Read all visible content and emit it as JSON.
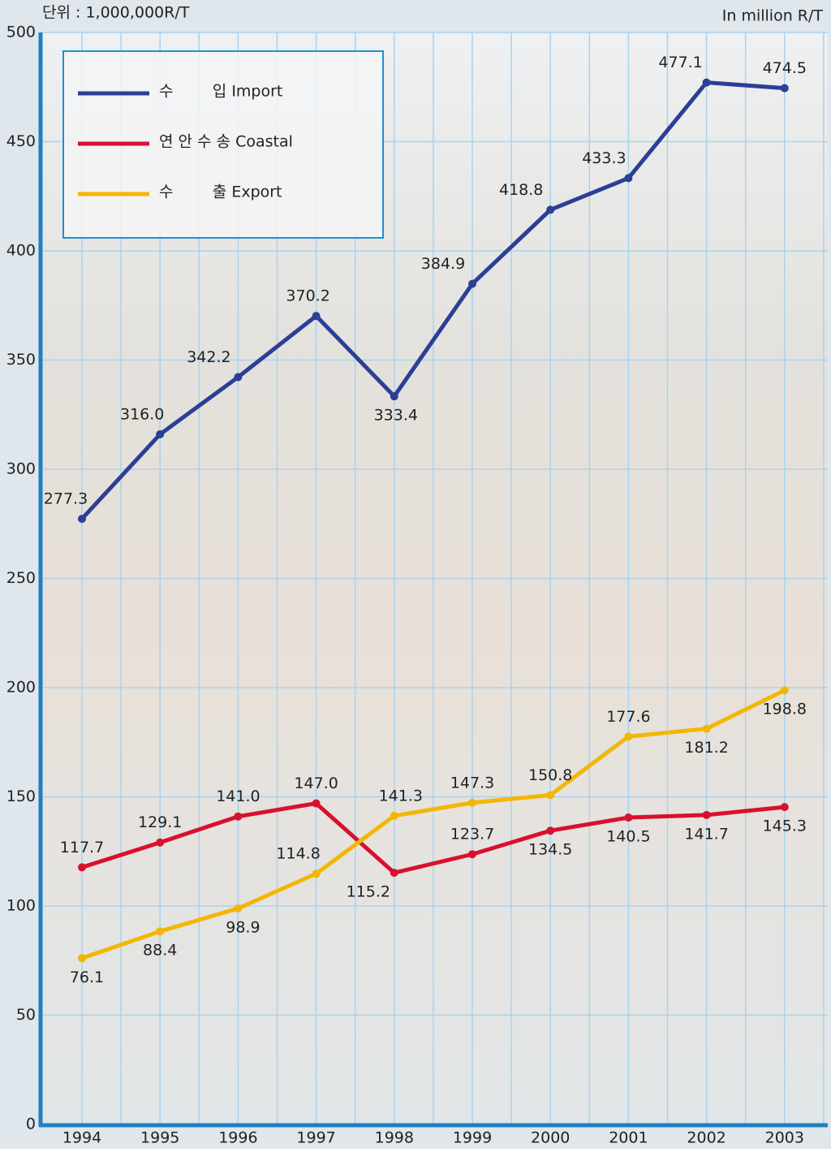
{
  "chart_data": {
    "type": "line",
    "unit_label_ko": "단위 : 1,000,000R/T",
    "unit_label_en": "In million R/T",
    "categories": [
      "1994",
      "1995",
      "1996",
      "1997",
      "1998",
      "1999",
      "2000",
      "2001",
      "2002",
      "2003"
    ],
    "series": [
      {
        "name": "수        입 Import",
        "color": "#2b3f96",
        "values": [
          277.3,
          316.0,
          342.2,
          370.2,
          333.4,
          384.9,
          418.8,
          433.3,
          477.1,
          474.5
        ],
        "value_labels": [
          "277.3",
          "316.0",
          "342.2",
          "370.2",
          "333.4",
          "384.9",
          "418.8",
          "433.3",
          "477.1",
          "474.5"
        ]
      },
      {
        "name": "연 안 수 송 Coastal",
        "color": "#d9102e",
        "values": [
          117.7,
          129.1,
          141.0,
          147.0,
          115.2,
          123.7,
          134.5,
          140.5,
          141.7,
          145.3
        ],
        "value_labels": [
          "117.7",
          "129.1",
          "141.0",
          "147.0",
          "115.2",
          "123.7",
          "134.5",
          "140.5",
          "141.7",
          "145.3"
        ]
      },
      {
        "name": "수        출 Export",
        "color": "#f2b705",
        "values": [
          76.1,
          88.4,
          98.9,
          114.8,
          141.3,
          147.3,
          150.8,
          177.6,
          181.2,
          198.8
        ]
      }
    ],
    "ylim": [
      0,
      500
    ],
    "yticks": [
      0,
      50,
      100,
      150,
      200,
      250,
      300,
      350,
      400,
      450,
      500
    ],
    "grid": true
  }
}
